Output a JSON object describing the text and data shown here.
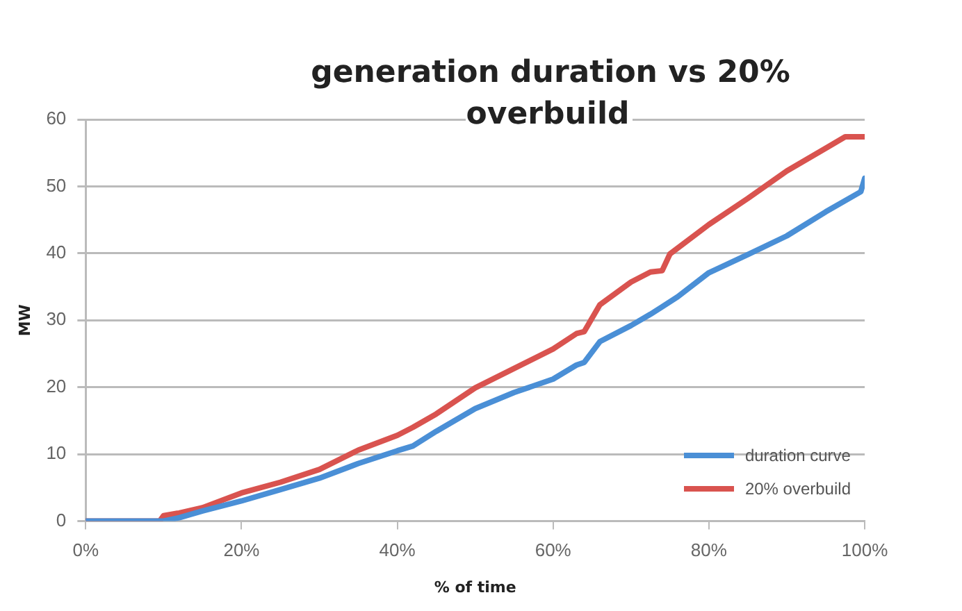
{
  "chart_data": {
    "type": "line",
    "title": "generation duration vs 20% overbuild",
    "xlabel": "% of time",
    "ylabel": "MW",
    "xlim": [
      0,
      100
    ],
    "xticks": [
      {
        "value": 0,
        "label": "0%"
      },
      {
        "value": 20,
        "label": "20%"
      },
      {
        "value": 40,
        "label": "40%"
      },
      {
        "value": 60,
        "label": "60%"
      },
      {
        "value": 80,
        "label": "80%"
      },
      {
        "value": 100,
        "label": "100%"
      }
    ],
    "ylim": [
      0,
      60
    ],
    "yticks": [
      0,
      10,
      20,
      30,
      40,
      50,
      60
    ],
    "grid": "y",
    "legend": "bottom right",
    "marker": "none",
    "line_style": "solid",
    "series": [
      {
        "name": "duration curve",
        "color": "#4a8fd6",
        "x": [
          0,
          10,
          12,
          15,
          20,
          25,
          30,
          35,
          40,
          42,
          45,
          50,
          55,
          60,
          63,
          64,
          66,
          70,
          72.5,
          74,
          76,
          80,
          85,
          90,
          95,
          99.5,
          100
        ],
        "values": [
          0,
          0,
          0.5,
          1.5,
          3,
          4.7,
          6.4,
          8.6,
          10.5,
          11.2,
          13.4,
          16.8,
          19.2,
          21.2,
          23.3,
          23.7,
          26.8,
          29.2,
          30.9,
          32,
          33.5,
          37.1,
          39.8,
          42.6,
          46.2,
          49.2,
          51.2
        ]
      },
      {
        "name": "20% overbuild",
        "color": "#d9534f",
        "x": [
          0,
          9.5,
          10,
          12,
          15,
          20,
          25,
          30,
          35,
          40,
          42,
          45,
          50,
          55,
          60,
          63,
          64,
          66,
          70,
          72.5,
          74,
          75,
          80,
          85,
          90,
          95,
          97.5,
          100
        ],
        "values": [
          0,
          0,
          0.8,
          1.2,
          2,
          4.2,
          5.8,
          7.7,
          10.6,
          12.8,
          14,
          16,
          19.9,
          22.8,
          25.7,
          28,
          28.3,
          32.3,
          35.7,
          37.2,
          37.4,
          39.9,
          44.3,
          48.2,
          52.3,
          55.7,
          57.4,
          57.4
        ]
      }
    ]
  }
}
